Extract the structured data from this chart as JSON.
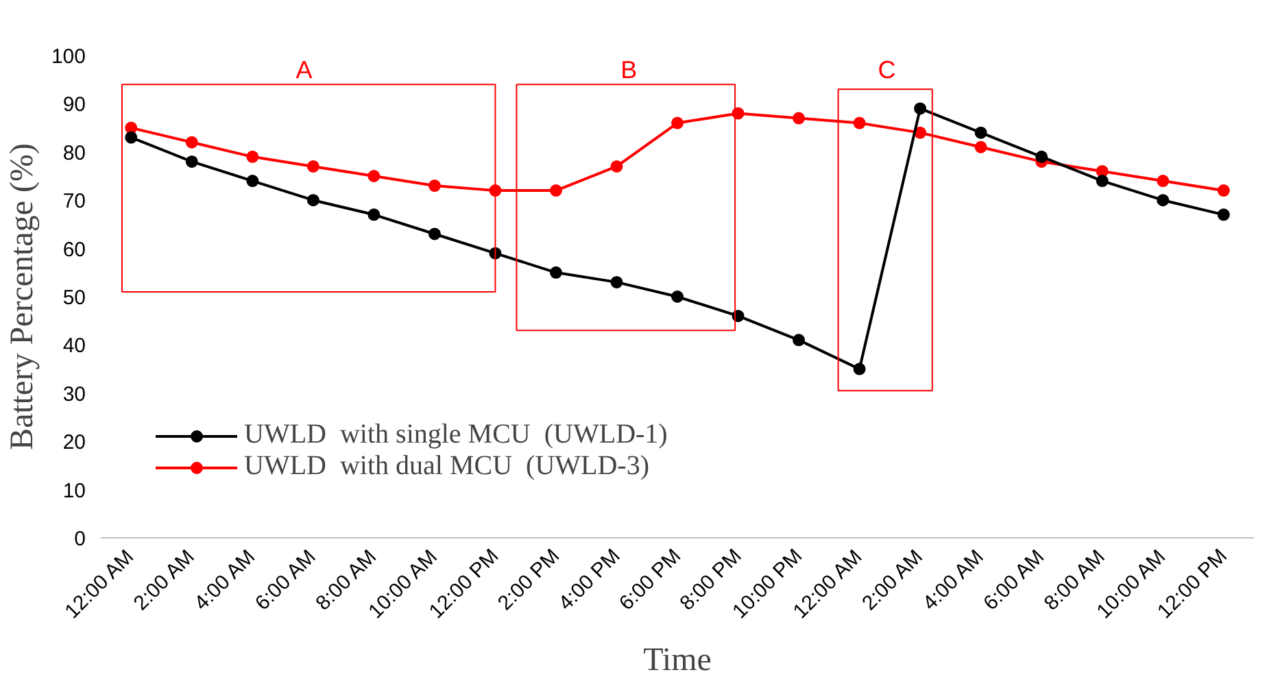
{
  "chart_data": {
    "type": "line",
    "xlabel": "Time",
    "ylabel": "Battery Percentage (%)",
    "categories": [
      "12:00 AM",
      "2:00 AM",
      "4:00 AM",
      "6:00 AM",
      "8:00 AM",
      "10:00 AM",
      "12:00 PM",
      "2:00 PM",
      "4:00 PM",
      "6:00 PM",
      "8:00 PM",
      "10:00 PM",
      "12:00 AM",
      "2:00 AM",
      "4:00 AM",
      "6:00 AM",
      "8:00 AM",
      "10:00 AM",
      "12:00 PM"
    ],
    "series": [
      {
        "name": "UWLD  with single MCU  (UWLD-1)",
        "color": "#000000",
        "values": [
          83,
          78,
          74,
          70,
          67,
          63,
          59,
          55,
          53,
          50,
          46,
          41,
          35,
          89,
          84,
          79,
          74,
          70,
          67
        ]
      },
      {
        "name": "UWLD  with dual MCU  (UWLD-3)",
        "color": "#ff0000",
        "values": [
          85,
          82,
          79,
          77,
          75,
          73,
          72,
          72,
          77,
          86,
          88,
          87,
          86,
          84,
          81,
          78,
          76,
          74,
          72
        ]
      }
    ],
    "ylim": [
      0,
      100
    ],
    "yticks": [
      0,
      10,
      20,
      30,
      40,
      50,
      60,
      70,
      80,
      90,
      100
    ],
    "marker": "circle",
    "line_style": "solid",
    "legend": "bottom left",
    "annotations": [
      "A",
      "B",
      "C"
    ]
  }
}
